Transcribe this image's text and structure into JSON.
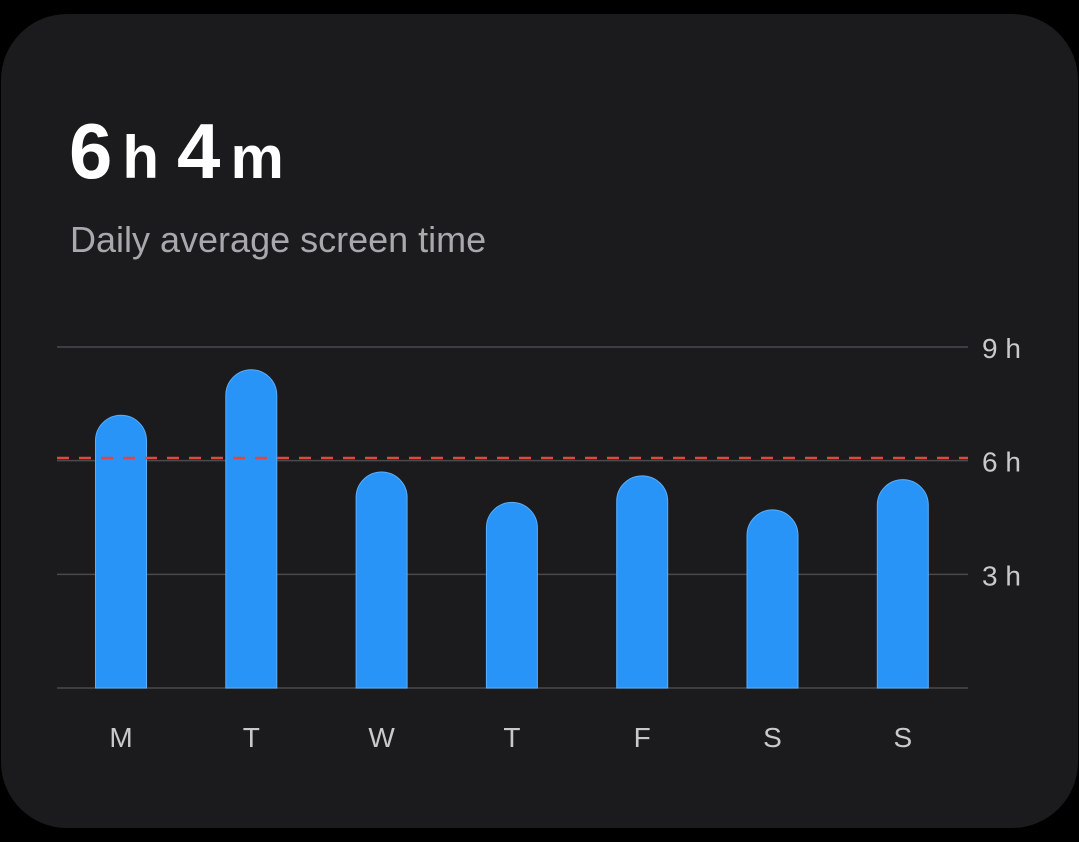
{
  "summary": {
    "hours_value": "6",
    "hours_unit": "h",
    "minutes_value": "4",
    "minutes_unit": "m",
    "subtitle": "Daily average screen time"
  },
  "colors": {
    "card_background": "#1b1b1d",
    "bar": "#2994f7",
    "average_line": "#e0483c",
    "grid": "#4a4a4e"
  },
  "chart_data": {
    "type": "bar",
    "categories": [
      "M",
      "T",
      "W",
      "T",
      "F",
      "S",
      "S"
    ],
    "values": [
      7.2,
      8.4,
      5.7,
      4.9,
      5.6,
      4.7,
      5.5
    ],
    "y_unit": "hours",
    "ylim": [
      0,
      9
    ],
    "yticks": [
      {
        "value": 3,
        "label": "3 h"
      },
      {
        "value": 6,
        "label": "6 h"
      },
      {
        "value": 9,
        "label": "9 h"
      }
    ],
    "average_line": 6.07,
    "grid": true,
    "y_axis_side": "right"
  }
}
